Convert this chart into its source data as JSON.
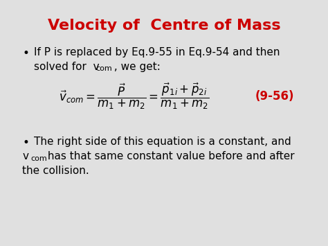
{
  "title": "Velocity of  Centre of Mass",
  "title_color": "#CC0000",
  "title_fontsize": 16,
  "bg_color": "#FFFFFF",
  "slide_bg": "#E0E0E0",
  "bullet1_line1": "If P is replaced by Eq.9-55 in Eq.9-54 and then",
  "bullet1_line2_main": "solved for  v",
  "bullet1_line2_sub": "com",
  "bullet1_line2_end": " , we get:",
  "equation_label": "(9-56)",
  "equation_label_color": "#CC0000",
  "bullet2_line1": "The right side of this equation is a constant, and",
  "bullet2_line2_v": "v",
  "bullet2_line2_sub": "com",
  "bullet2_line2_rest": " has that same constant value before and after",
  "bullet2_line3": "the collision.",
  "text_color": "#000000",
  "text_fontsize": 11,
  "eq_fontsize": 12
}
